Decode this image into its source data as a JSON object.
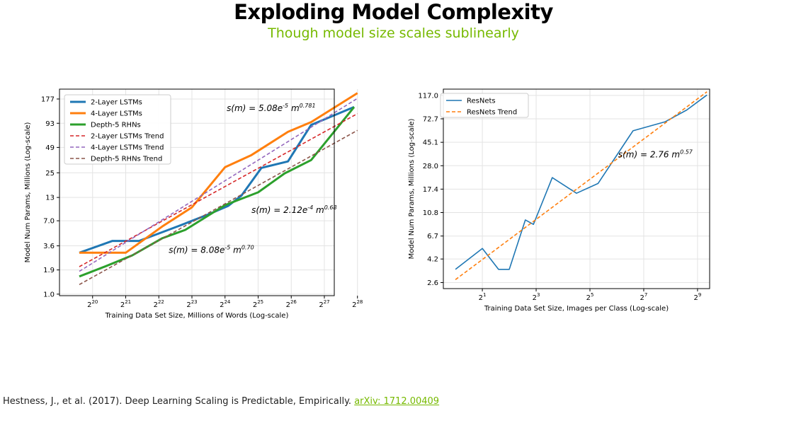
{
  "header": {
    "title": "Exploding Model Complexity",
    "subtitle": "Though model size scales sublinearly"
  },
  "citation": {
    "text": "Hestness, J., et al. (2017). Deep Learning Scaling is Predictable, Empirically. ",
    "link_text": "arXiv: 1712.00409"
  },
  "colors": {
    "accent": "#76b900"
  },
  "chart_data": [
    {
      "type": "line",
      "xscale": "log2",
      "yscale": "log",
      "xlabel": "Training Data Set Size, Millions of Words (Log-scale)",
      "ylabel": "Model Num Params, Millions (Log-scale)",
      "xlim": [
        1.0,
        9.3
      ],
      "ylim": [
        0.96,
        230
      ],
      "grid": true,
      "legend_position": "top-left",
      "x_ticks": [
        {
          "value": 2,
          "base": "2",
          "exp": "20"
        },
        {
          "value": 3,
          "base": "2",
          "exp": "21"
        },
        {
          "value": 4,
          "base": "2",
          "exp": "22"
        },
        {
          "value": 5,
          "base": "2",
          "exp": "23"
        },
        {
          "value": 6,
          "base": "2",
          "exp": "24"
        },
        {
          "value": 7,
          "base": "2",
          "exp": "25"
        },
        {
          "value": 8,
          "base": "2",
          "exp": "26"
        },
        {
          "value": 9,
          "base": "2",
          "exp": "27"
        },
        {
          "value": 10,
          "base": "2",
          "exp": "28"
        }
      ],
      "y_ticks": [
        {
          "value": 1.0,
          "label": "1.0"
        },
        {
          "value": 1.9,
          "label": "1.9"
        },
        {
          "value": 3.6,
          "label": "3.6"
        },
        {
          "value": 7.0,
          "label": "7.0"
        },
        {
          "value": 13,
          "label": "13"
        },
        {
          "value": 25,
          "label": "25"
        },
        {
          "value": 49,
          "label": "49"
        },
        {
          "value": 93,
          "label": "93"
        },
        {
          "value": 177,
          "label": "177"
        }
      ],
      "series": [
        {
          "name": "2-Layer LSTMs",
          "color": "#1f77b4",
          "style": "solid",
          "points": [
            [
              1.6,
              3.0
            ],
            [
              2.6,
              4.1
            ],
            [
              3.4,
              4.1
            ],
            [
              4.6,
              6.1
            ],
            [
              5.5,
              8.3
            ],
            [
              6.1,
              10.4
            ],
            [
              6.5,
              13.7
            ],
            [
              7.1,
              28.5
            ],
            [
              7.9,
              33.8
            ],
            [
              8.6,
              89
            ],
            [
              9.9,
              143
            ]
          ]
        },
        {
          "name": "4-Layer LSTMs",
          "color": "#ff7f0e",
          "style": "solid",
          "points": [
            [
              1.6,
              3.0
            ],
            [
              2.0,
              3.0
            ],
            [
              3.0,
              3.0
            ],
            [
              4.1,
              6.0
            ],
            [
              5.0,
              10.0
            ],
            [
              6.0,
              29
            ],
            [
              6.8,
              40
            ],
            [
              7.9,
              74
            ],
            [
              8.6,
              96
            ],
            [
              10.0,
              207
            ]
          ]
        },
        {
          "name": "Depth-5 RHNs",
          "color": "#2ca02c",
          "style": "solid",
          "points": [
            [
              1.6,
              1.6
            ],
            [
              2.4,
              2.1
            ],
            [
              3.2,
              2.8
            ],
            [
              4.1,
              4.4
            ],
            [
              4.8,
              5.5
            ],
            [
              6.0,
              10.6
            ],
            [
              7.0,
              14.9
            ],
            [
              7.8,
              24.6
            ],
            [
              8.6,
              35
            ],
            [
              9.9,
              143
            ]
          ]
        },
        {
          "name": "2-Layer LSTMs Trend",
          "color": "#d62728",
          "style": "dashed",
          "points": [
            [
              1.6,
              2.07
            ],
            [
              10.0,
              120
            ]
          ]
        },
        {
          "name": "4-Layer LSTMs Trend",
          "color": "#9467bd",
          "style": "dashed",
          "points": [
            [
              1.6,
              1.83
            ],
            [
              10.0,
              180
            ]
          ]
        },
        {
          "name": "Depth-5 RHNs Trend",
          "color": "#8c564b",
          "style": "dashed",
          "points": [
            [
              1.6,
              1.29
            ],
            [
              10.0,
              77
            ]
          ]
        }
      ],
      "annotations": [
        {
          "x": 6.05,
          "y": 128,
          "base": "s(m) = 5.08e",
          "sup1": "-5",
          "mid": " m",
          "sup2": "0.781"
        },
        {
          "x": 6.8,
          "y": 8.65,
          "base": "s(m) = 2.12e",
          "sup1": "-4",
          "mid": " m",
          "sup2": "0.68"
        },
        {
          "x": 4.3,
          "y": 3.0,
          "base": "s(m) = 8.08e",
          "sup1": "-5",
          "mid": " m",
          "sup2": "0.70"
        }
      ]
    },
    {
      "type": "line",
      "xscale": "log2",
      "yscale": "log",
      "xlabel": "Training Data Set Size, Images per Class (Log-scale)",
      "ylabel": "Model Num Params, Millions (Log-scale)",
      "xlim": [
        -0.45,
        9.45
      ],
      "ylim": [
        2.3,
        133
      ],
      "grid": true,
      "legend_position": "top-left",
      "x_ticks": [
        {
          "value": 1,
          "base": "2",
          "exp": "1"
        },
        {
          "value": 3,
          "base": "2",
          "exp": "3"
        },
        {
          "value": 5,
          "base": "2",
          "exp": "5"
        },
        {
          "value": 7,
          "base": "2",
          "exp": "7"
        },
        {
          "value": 9,
          "base": "2",
          "exp": "9"
        }
      ],
      "y_ticks": [
        {
          "value": 2.6,
          "label": "2.6"
        },
        {
          "value": 4.2,
          "label": "4.2"
        },
        {
          "value": 6.7,
          "label": "6.7"
        },
        {
          "value": 10.8,
          "label": "10.8"
        },
        {
          "value": 17.4,
          "label": "17.4"
        },
        {
          "value": 28.0,
          "label": "28.0"
        },
        {
          "value": 45.1,
          "label": "45.1"
        },
        {
          "value": 72.7,
          "label": "72.7"
        },
        {
          "value": 117.0,
          "label": "117.0"
        }
      ],
      "series": [
        {
          "name": "ResNets",
          "color": "#1f77b4",
          "style": "solid",
          "points": [
            [
              0.0,
              3.4
            ],
            [
              1.0,
              5.2
            ],
            [
              1.6,
              3.4
            ],
            [
              2.0,
              3.4
            ],
            [
              2.6,
              9.3
            ],
            [
              2.9,
              8.5
            ],
            [
              3.6,
              22
            ],
            [
              4.5,
              16
            ],
            [
              5.3,
              19.5
            ],
            [
              6.6,
              57
            ],
            [
              7.8,
              68.5
            ],
            [
              8.6,
              87
            ],
            [
              9.35,
              118
            ]
          ]
        },
        {
          "name": "ResNets Trend",
          "color": "#ff7f0e",
          "style": "dashed",
          "points": [
            [
              0.0,
              2.76
            ],
            [
              9.35,
              126
            ]
          ]
        }
      ],
      "annotations": [
        {
          "x": 6.05,
          "y": 33.1,
          "base": "s(m) = 2.76 m",
          "sup1": "",
          "mid": "",
          "sup2": "0.57"
        }
      ]
    }
  ]
}
